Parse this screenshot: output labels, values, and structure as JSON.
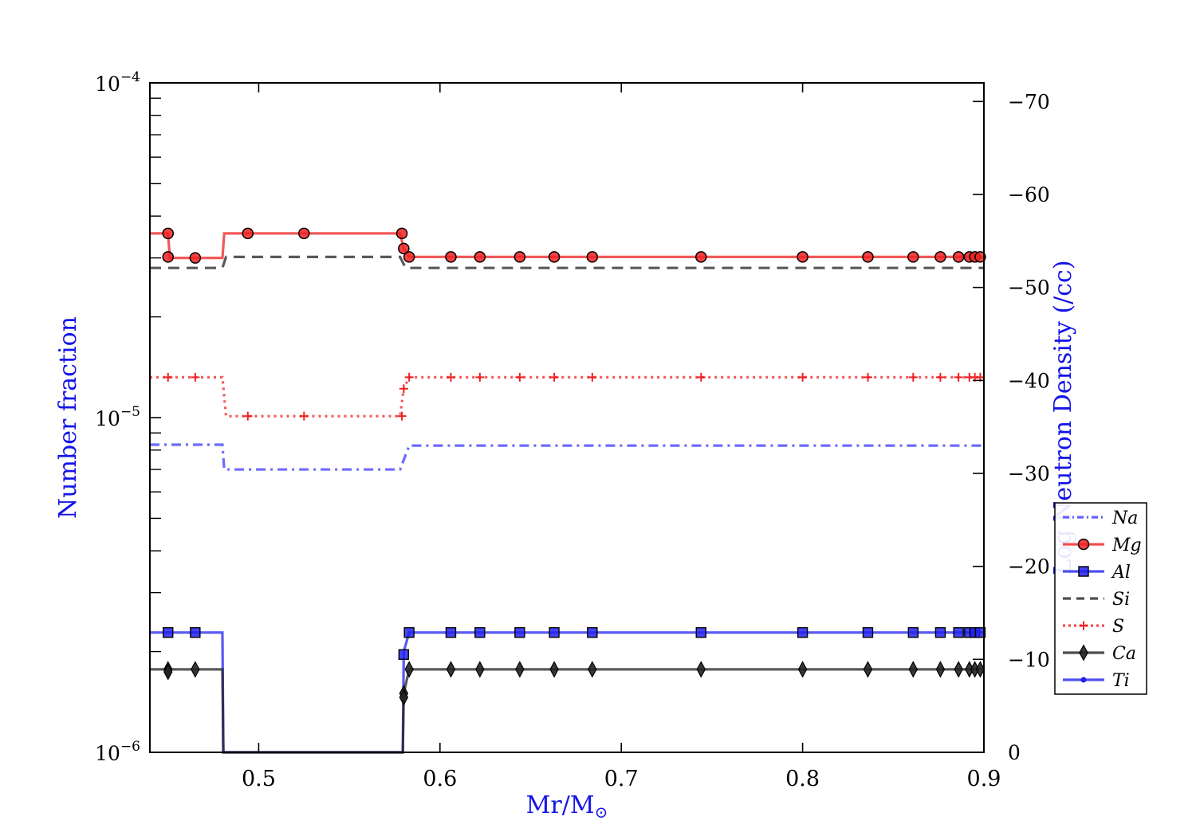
{
  "chart_data": {
    "type": "line",
    "xlabel": "Mr/M",
    "xlabel_symbol": "⊙",
    "ylabel": "Number fraction",
    "y2label": "Log Neutron Density (/cc)",
    "xlim": [
      0.44,
      0.9
    ],
    "ylim": [
      1e-06,
      0.0001
    ],
    "yscale": "log",
    "y2lim": [
      0,
      -72
    ],
    "x_ticks": [
      0.5,
      0.6,
      0.7,
      0.8,
      0.9
    ],
    "x_tick_labels": [
      "0.5",
      "0.6",
      "0.7",
      "0.8",
      "0.9"
    ],
    "y_ticks": [
      {
        "value": 1e-06,
        "base": "10",
        "exp": "−6"
      },
      {
        "value": 1e-05,
        "base": "10",
        "exp": "−5"
      },
      {
        "value": 0.0001,
        "base": "10",
        "exp": "−4"
      }
    ],
    "y2_ticks": [
      0,
      -10,
      -20,
      -30,
      -40,
      -50,
      -60,
      -70
    ],
    "y2_tick_labels": [
      "0",
      "−10",
      "−20",
      "−30",
      "−40",
      "−50",
      "−60",
      "−70"
    ],
    "grid": false,
    "legend_position": "right",
    "series": [
      {
        "name": "Na",
        "color": "#3a3aff",
        "line_style": "dashdot",
        "marker": "none",
        "points": [
          {
            "x": 0.44,
            "y": 8.3e-06
          },
          {
            "x": 0.48,
            "y": 8.3e-06
          },
          {
            "x": 0.481,
            "y": 7e-06
          },
          {
            "x": 0.578,
            "y": 7e-06
          },
          {
            "x": 0.583,
            "y": 8.25e-06
          },
          {
            "x": 0.9,
            "y": 8.25e-06
          }
        ]
      },
      {
        "name": "Mg",
        "color": "#ee2222",
        "line_style": "solid",
        "marker": "circle",
        "points": [
          {
            "x": 0.44,
            "y": 3.55e-05
          },
          {
            "x": 0.45,
            "y": 3.55e-05
          },
          {
            "x": 0.451,
            "y": 3e-05
          },
          {
            "x": 0.48,
            "y": 3e-05
          },
          {
            "x": 0.481,
            "y": 3.55e-05
          },
          {
            "x": 0.578,
            "y": 3.55e-05
          },
          {
            "x": 0.58,
            "y": 3.2e-05
          },
          {
            "x": 0.583,
            "y": 3.02e-05
          },
          {
            "x": 0.9,
            "y": 3.02e-05
          }
        ],
        "markers": [
          {
            "x": 0.45,
            "y": 3.55e-05
          },
          {
            "x": 0.45,
            "y": 3.02e-05
          },
          {
            "x": 0.465,
            "y": 3e-05
          },
          {
            "x": 0.494,
            "y": 3.55e-05
          },
          {
            "x": 0.525,
            "y": 3.55e-05
          },
          {
            "x": 0.579,
            "y": 3.55e-05
          },
          {
            "x": 0.58,
            "y": 3.2e-05
          },
          {
            "x": 0.583,
            "y": 3.02e-05
          },
          {
            "x": 0.606,
            "y": 3.02e-05
          },
          {
            "x": 0.622,
            "y": 3.02e-05
          },
          {
            "x": 0.644,
            "y": 3.02e-05
          },
          {
            "x": 0.663,
            "y": 3.02e-05
          },
          {
            "x": 0.684,
            "y": 3.02e-05
          },
          {
            "x": 0.744,
            "y": 3.02e-05
          },
          {
            "x": 0.8,
            "y": 3.02e-05
          },
          {
            "x": 0.836,
            "y": 3.02e-05
          },
          {
            "x": 0.861,
            "y": 3.02e-05
          },
          {
            "x": 0.876,
            "y": 3.02e-05
          },
          {
            "x": 0.886,
            "y": 3.02e-05
          },
          {
            "x": 0.892,
            "y": 3.02e-05
          },
          {
            "x": 0.895,
            "y": 3.02e-05
          },
          {
            "x": 0.898,
            "y": 3.02e-05
          }
        ]
      },
      {
        "name": "Al",
        "color": "#2222ee",
        "line_style": "solid",
        "marker": "square",
        "points": [
          {
            "x": 0.44,
            "y": 2.28e-06
          },
          {
            "x": 0.48,
            "y": 2.28e-06
          },
          {
            "x": 0.4805,
            "y": 1e-06
          },
          {
            "x": 0.5795,
            "y": 1e-06
          },
          {
            "x": 0.58,
            "y": 2e-06
          },
          {
            "x": 0.583,
            "y": 2.28e-06
          },
          {
            "x": 0.9,
            "y": 2.28e-06
          }
        ],
        "markers": [
          {
            "x": 0.45,
            "y": 2.28e-06
          },
          {
            "x": 0.465,
            "y": 2.28e-06
          },
          {
            "x": 0.58,
            "y": 1.96e-06
          },
          {
            "x": 0.583,
            "y": 2.28e-06
          },
          {
            "x": 0.606,
            "y": 2.28e-06
          },
          {
            "x": 0.622,
            "y": 2.28e-06
          },
          {
            "x": 0.644,
            "y": 2.28e-06
          },
          {
            "x": 0.663,
            "y": 2.28e-06
          },
          {
            "x": 0.684,
            "y": 2.28e-06
          },
          {
            "x": 0.744,
            "y": 2.28e-06
          },
          {
            "x": 0.8,
            "y": 2.28e-06
          },
          {
            "x": 0.836,
            "y": 2.28e-06
          },
          {
            "x": 0.861,
            "y": 2.28e-06
          },
          {
            "x": 0.876,
            "y": 2.28e-06
          },
          {
            "x": 0.886,
            "y": 2.28e-06
          },
          {
            "x": 0.892,
            "y": 2.28e-06
          },
          {
            "x": 0.895,
            "y": 2.28e-06
          },
          {
            "x": 0.898,
            "y": 2.28e-06
          }
        ]
      },
      {
        "name": "Si",
        "color": "#222222",
        "line_style": "dashed",
        "marker": "none",
        "points": [
          {
            "x": 0.44,
            "y": 2.8e-05
          },
          {
            "x": 0.48,
            "y": 2.8e-05
          },
          {
            "x": 0.482,
            "y": 3.02e-05
          },
          {
            "x": 0.578,
            "y": 3.02e-05
          },
          {
            "x": 0.581,
            "y": 2.8e-05
          },
          {
            "x": 0.9,
            "y": 2.8e-05
          }
        ]
      },
      {
        "name": "S",
        "color": "#ee2222",
        "line_style": "dotted",
        "marker": "plus",
        "points": [
          {
            "x": 0.44,
            "y": 1.32e-05
          },
          {
            "x": 0.48,
            "y": 1.32e-05
          },
          {
            "x": 0.482,
            "y": 1.01e-05
          },
          {
            "x": 0.578,
            "y": 1.01e-05
          },
          {
            "x": 0.58,
            "y": 1.22e-05
          },
          {
            "x": 0.583,
            "y": 1.32e-05
          },
          {
            "x": 0.9,
            "y": 1.32e-05
          }
        ],
        "markers": [
          {
            "x": 0.45,
            "y": 1.32e-05
          },
          {
            "x": 0.465,
            "y": 1.32e-05
          },
          {
            "x": 0.494,
            "y": 1.01e-05
          },
          {
            "x": 0.525,
            "y": 1.01e-05
          },
          {
            "x": 0.579,
            "y": 1.01e-05
          },
          {
            "x": 0.58,
            "y": 1.22e-05
          },
          {
            "x": 0.583,
            "y": 1.32e-05
          },
          {
            "x": 0.606,
            "y": 1.32e-05
          },
          {
            "x": 0.622,
            "y": 1.32e-05
          },
          {
            "x": 0.644,
            "y": 1.32e-05
          },
          {
            "x": 0.663,
            "y": 1.32e-05
          },
          {
            "x": 0.684,
            "y": 1.32e-05
          },
          {
            "x": 0.744,
            "y": 1.32e-05
          },
          {
            "x": 0.8,
            "y": 1.32e-05
          },
          {
            "x": 0.836,
            "y": 1.32e-05
          },
          {
            "x": 0.861,
            "y": 1.32e-05
          },
          {
            "x": 0.876,
            "y": 1.32e-05
          },
          {
            "x": 0.886,
            "y": 1.32e-05
          },
          {
            "x": 0.892,
            "y": 1.32e-05
          },
          {
            "x": 0.895,
            "y": 1.32e-05
          },
          {
            "x": 0.898,
            "y": 1.32e-05
          }
        ]
      },
      {
        "name": "Ca",
        "color": "#222222",
        "line_style": "solid",
        "marker": "diamond",
        "points": [
          {
            "x": 0.44,
            "y": 1.77e-06
          },
          {
            "x": 0.48,
            "y": 1.77e-06
          },
          {
            "x": 0.4805,
            "y": 1e-06
          },
          {
            "x": 0.5795,
            "y": 1e-06
          },
          {
            "x": 0.58,
            "y": 1.5e-06
          },
          {
            "x": 0.583,
            "y": 1.77e-06
          },
          {
            "x": 0.9,
            "y": 1.77e-06
          }
        ],
        "markers": [
          {
            "x": 0.45,
            "y": 1.77e-06
          },
          {
            "x": 0.45,
            "y": 1.74e-06
          },
          {
            "x": 0.465,
            "y": 1.77e-06
          },
          {
            "x": 0.58,
            "y": 1.5e-06
          },
          {
            "x": 0.58,
            "y": 1.46e-06
          },
          {
            "x": 0.583,
            "y": 1.77e-06
          },
          {
            "x": 0.606,
            "y": 1.77e-06
          },
          {
            "x": 0.622,
            "y": 1.77e-06
          },
          {
            "x": 0.644,
            "y": 1.77e-06
          },
          {
            "x": 0.663,
            "y": 1.77e-06
          },
          {
            "x": 0.684,
            "y": 1.77e-06
          },
          {
            "x": 0.744,
            "y": 1.77e-06
          },
          {
            "x": 0.8,
            "y": 1.77e-06
          },
          {
            "x": 0.836,
            "y": 1.77e-06
          },
          {
            "x": 0.861,
            "y": 1.77e-06
          },
          {
            "x": 0.876,
            "y": 1.77e-06
          },
          {
            "x": 0.886,
            "y": 1.77e-06
          },
          {
            "x": 0.892,
            "y": 1.77e-06
          },
          {
            "x": 0.895,
            "y": 1.77e-06
          },
          {
            "x": 0.898,
            "y": 1.77e-06
          }
        ]
      },
      {
        "name": "Ti",
        "color": "#2222ee",
        "line_style": "solid",
        "marker": "dot",
        "points": [],
        "markers": []
      }
    ]
  }
}
